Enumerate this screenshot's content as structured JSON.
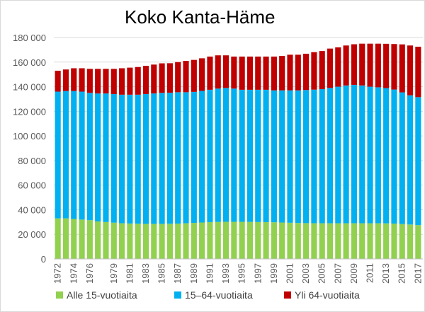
{
  "chart_data": {
    "type": "bar",
    "stacked": true,
    "title": "Koko Kanta-Häme",
    "xlabel": "",
    "ylabel": "",
    "ylim": [
      0,
      180000
    ],
    "y_ticks": [
      "0",
      "20 000",
      "40 000",
      "60 000",
      "80 000",
      "100 000",
      "120 000",
      "140 000",
      "160 000",
      "180 000"
    ],
    "grid": true,
    "legend_position": "bottom",
    "categories": [
      1972,
      1973,
      1974,
      1975,
      1976,
      1977,
      1978,
      1979,
      1980,
      1981,
      1982,
      1983,
      1984,
      1985,
      1986,
      1987,
      1988,
      1989,
      1990,
      1991,
      1992,
      1993,
      1994,
      1995,
      1996,
      1997,
      1998,
      1999,
      2000,
      2001,
      2002,
      2003,
      2004,
      2005,
      2006,
      2007,
      2008,
      2009,
      2010,
      2011,
      2012,
      2013,
      2014,
      2015,
      2016,
      2017
    ],
    "x_tick_labels": [
      "1972",
      "1974",
      "1976",
      "1979",
      "1981",
      "1983",
      "1985",
      "1987",
      "1989",
      "1991",
      "1993",
      "1995",
      "1997",
      "1999",
      "2001",
      "2003",
      "2005",
      "2007",
      "2009",
      "2011",
      "2013",
      "2015",
      "2017"
    ],
    "series": [
      {
        "name": "Alle 15-vuotiaita",
        "color": "#92d050",
        "values": [
          33000,
          33000,
          32500,
          32000,
          31500,
          30500,
          30000,
          29500,
          29000,
          28800,
          28600,
          28500,
          28500,
          28500,
          28600,
          28700,
          29000,
          29300,
          29600,
          29900,
          30100,
          30200,
          30200,
          30200,
          30100,
          30000,
          29900,
          29800,
          29600,
          29400,
          29200,
          29100,
          29000,
          29000,
          29000,
          29000,
          29000,
          29000,
          29000,
          29000,
          29000,
          28900,
          28700,
          28400,
          28000,
          27500
        ]
      },
      {
        "name": "15–64-vuotiaita",
        "color": "#00b0f0",
        "values": [
          103000,
          103500,
          104000,
          104000,
          103500,
          104000,
          104500,
          104500,
          104500,
          104700,
          104900,
          105500,
          106000,
          106500,
          106500,
          106800,
          106500,
          106500,
          107000,
          107600,
          108400,
          108800,
          108300,
          107300,
          107400,
          107500,
          107600,
          107200,
          107400,
          107600,
          107800,
          108200,
          108600,
          109000,
          110000,
          111000,
          112000,
          112500,
          112000,
          111000,
          110500,
          110000,
          109000,
          107000,
          105000,
          104000
        ]
      },
      {
        "name": "Yli 64-vuotiaita",
        "color": "#c00000",
        "values": [
          17000,
          17500,
          18500,
          19000,
          19500,
          20000,
          20000,
          20500,
          21500,
          22000,
          22500,
          23000,
          23500,
          24000,
          24000,
          24500,
          25500,
          26000,
          26500,
          27000,
          27000,
          26500,
          26000,
          27000,
          27000,
          27000,
          27000,
          27500,
          28000,
          29000,
          29000,
          29500,
          30500,
          31000,
          32000,
          32000,
          32500,
          33000,
          34000,
          35000,
          35500,
          36000,
          37000,
          39000,
          40500,
          41000
        ]
      }
    ]
  }
}
